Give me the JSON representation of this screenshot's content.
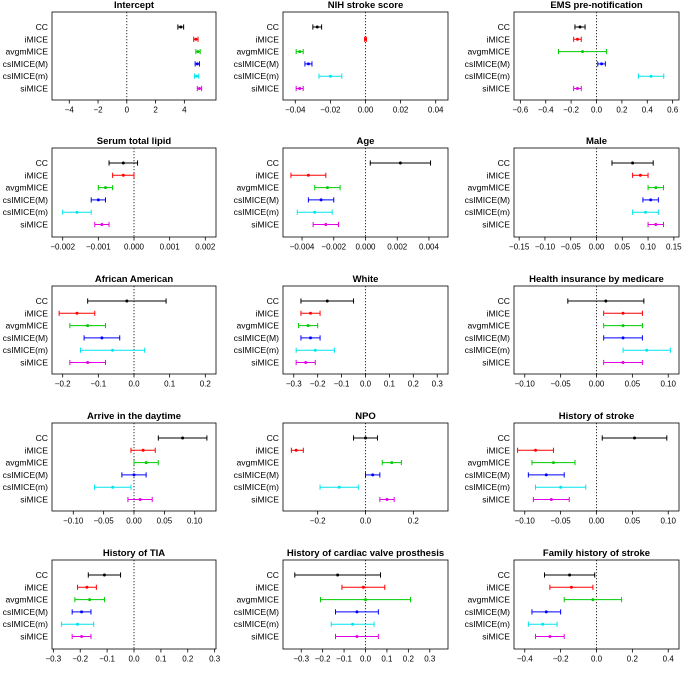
{
  "chart_data": [
    {
      "type": "forest",
      "title": "Intercept",
      "xlim": [
        -5.2,
        6.2
      ],
      "ticks": [
        -4,
        -2,
        0,
        2,
        4
      ],
      "tick_labels": [
        "−4",
        "−2",
        "0",
        "2",
        "4"
      ],
      "methods": [
        "CC",
        "iMICE",
        "avgmMICE",
        "csIMICE(M)",
        "csIMICE(m)",
        "siMICE"
      ],
      "est": [
        3.75,
        4.8,
        4.95,
        4.9,
        4.85,
        5.05
      ],
      "lo": [
        3.55,
        4.65,
        4.8,
        4.75,
        4.7,
        4.9
      ],
      "hi": [
        3.95,
        4.95,
        5.1,
        5.05,
        5.0,
        5.2
      ]
    },
    {
      "type": "forest",
      "title": "NIH stroke score",
      "xlim": [
        -0.047,
        0.047
      ],
      "ticks": [
        -0.04,
        -0.02,
        0,
        0.02,
        0.04
      ],
      "tick_labels": [
        "−0.04",
        "−0.02",
        "0.00",
        "0.02",
        "0.04"
      ],
      "methods": [
        "CC",
        "iMICE",
        "avgmMICE",
        "csIMICE(M)",
        "csIMICE(m)",
        "siMICE"
      ],
      "est": [
        -0.0275,
        0.0,
        -0.0375,
        -0.0325,
        -0.02,
        -0.0375
      ],
      "lo": [
        -0.03,
        -0.0005,
        -0.0395,
        -0.0345,
        -0.0265,
        -0.0395
      ],
      "hi": [
        -0.025,
        0.0005,
        -0.0355,
        -0.0305,
        -0.0135,
        -0.0355
      ]
    },
    {
      "type": "forest",
      "title": "EMS pre-notification",
      "xlim": [
        -0.65,
        0.65
      ],
      "ticks": [
        -0.6,
        -0.4,
        -0.2,
        0,
        0.2,
        0.4,
        0.6
      ],
      "tick_labels": [
        "−0.6",
        "−0.4",
        "−0.2",
        "0.0",
        "0.2",
        "0.4",
        "0.6"
      ],
      "methods": [
        "CC",
        "iMICE",
        "avgmMICE",
        "csIMICE(M)",
        "csIMICE(m)",
        "siMICE"
      ],
      "est": [
        -0.13,
        -0.15,
        -0.11,
        0.04,
        0.43,
        -0.15
      ],
      "lo": [
        -0.17,
        -0.18,
        -0.3,
        0.01,
        0.33,
        -0.18
      ],
      "hi": [
        -0.09,
        -0.12,
        0.08,
        0.07,
        0.53,
        -0.12
      ]
    },
    {
      "type": "forest",
      "title": "Serum total lipid",
      "xlim": [
        -0.0023,
        0.0023
      ],
      "ticks": [
        -0.002,
        -0.001,
        0,
        0.001,
        0.002
      ],
      "tick_labels": [
        "−0.002",
        "−0.001",
        "0.000",
        "0.001",
        "0.002"
      ],
      "methods": [
        "CC",
        "iMICE",
        "avgmMICE",
        "csIMICE(M)",
        "csIMICE(m)",
        "siMICE"
      ],
      "est": [
        -0.0003,
        -0.0003,
        -0.0008,
        -0.001,
        -0.0016,
        -0.0009
      ],
      "lo": [
        -0.0007,
        -0.0006,
        -0.001,
        -0.0012,
        -0.002,
        -0.0011
      ],
      "hi": [
        0.0001,
        0.0,
        -0.0006,
        -0.0008,
        -0.0012,
        -0.0007
      ]
    },
    {
      "type": "forest",
      "title": "Age",
      "xlim": [
        -0.0052,
        0.0052
      ],
      "ticks": [
        -0.004,
        -0.002,
        0,
        0.002,
        0.004
      ],
      "tick_labels": [
        "−0.004",
        "−0.002",
        "0.000",
        "0.002",
        "0.004"
      ],
      "methods": [
        "CC",
        "iMICE",
        "avgmMICE",
        "csIMICE(M)",
        "csIMICE(m)",
        "siMICE"
      ],
      "est": [
        0.0022,
        -0.0036,
        -0.0024,
        -0.0028,
        -0.0032,
        -0.0025
      ],
      "lo": [
        0.0003,
        -0.0047,
        -0.0032,
        -0.0036,
        -0.0043,
        -0.0033
      ],
      "hi": [
        0.0041,
        -0.0025,
        -0.0016,
        -0.002,
        -0.0021,
        -0.0017
      ]
    },
    {
      "type": "forest",
      "title": "Male",
      "xlim": [
        -0.16,
        0.16
      ],
      "ticks": [
        -0.15,
        -0.1,
        -0.05,
        0,
        0.05,
        0.1,
        0.15
      ],
      "tick_labels": [
        "−0.15",
        "−0.10",
        "−0.05",
        "0.00",
        "0.05",
        "0.10",
        "0.15"
      ],
      "methods": [
        "CC",
        "iMICE",
        "avgmMICE",
        "csIMICE(M)",
        "csIMICE(m)",
        "siMICE"
      ],
      "est": [
        0.07,
        0.085,
        0.115,
        0.105,
        0.095,
        0.115
      ],
      "lo": [
        0.03,
        0.07,
        0.1,
        0.09,
        0.07,
        0.1
      ],
      "hi": [
        0.11,
        0.1,
        0.13,
        0.12,
        0.12,
        0.13
      ]
    },
    {
      "type": "forest",
      "title": "African American",
      "xlim": [
        -0.23,
        0.23
      ],
      "ticks": [
        -0.2,
        -0.1,
        0,
        0.1,
        0.2
      ],
      "tick_labels": [
        "−0.2",
        "−0.1",
        "0.0",
        "0.1",
        "0.2"
      ],
      "methods": [
        "CC",
        "iMICE",
        "avgmMICE",
        "csIMICE(M)",
        "csIMICE(m)",
        "siMICE"
      ],
      "est": [
        -0.02,
        -0.16,
        -0.13,
        -0.09,
        -0.06,
        -0.13
      ],
      "lo": [
        -0.13,
        -0.21,
        -0.18,
        -0.14,
        -0.15,
        -0.18
      ],
      "hi": [
        0.09,
        -0.11,
        -0.08,
        -0.04,
        0.03,
        -0.08
      ]
    },
    {
      "type": "forest",
      "title": "White",
      "xlim": [
        -0.345,
        0.345
      ],
      "ticks": [
        -0.3,
        -0.2,
        -0.1,
        0,
        0.1,
        0.2,
        0.3
      ],
      "tick_labels": [
        "−0.3",
        "−0.2",
        "−0.1",
        "0.0",
        "0.1",
        "0.2",
        "0.3"
      ],
      "methods": [
        "CC",
        "iMICE",
        "avgmMICE",
        "csIMICE(M)",
        "csIMICE(m)",
        "siMICE"
      ],
      "est": [
        -0.16,
        -0.23,
        -0.24,
        -0.23,
        -0.21,
        -0.25
      ],
      "lo": [
        -0.27,
        -0.27,
        -0.28,
        -0.27,
        -0.29,
        -0.29
      ],
      "hi": [
        -0.05,
        -0.19,
        -0.2,
        -0.19,
        -0.13,
        -0.21
      ]
    },
    {
      "type": "forest",
      "title": "Health insurance by medicare",
      "xlim": [
        -0.115,
        0.115
      ],
      "ticks": [
        -0.1,
        -0.05,
        0,
        0.05,
        0.1
      ],
      "tick_labels": [
        "−0.10",
        "−0.05",
        "0.00",
        "0.05",
        "0.10"
      ],
      "methods": [
        "CC",
        "iMICE",
        "avgmMICE",
        "csIMICE(M)",
        "csIMICE(m)",
        "siMICE"
      ],
      "est": [
        0.013,
        0.037,
        0.037,
        0.037,
        0.07,
        0.037
      ],
      "lo": [
        -0.04,
        0.01,
        0.01,
        0.01,
        0.037,
        0.01
      ],
      "hi": [
        0.066,
        0.064,
        0.064,
        0.064,
        0.103,
        0.064
      ]
    },
    {
      "type": "forest",
      "title": "Arrive in the daytime",
      "xlim": [
        -0.135,
        0.135
      ],
      "ticks": [
        -0.1,
        -0.05,
        0,
        0.05,
        0.1
      ],
      "tick_labels": [
        "−0.10",
        "−0.05",
        "0.00",
        "0.05",
        "0.10"
      ],
      "methods": [
        "CC",
        "iMICE",
        "avgmMICE",
        "csIMICE(M)",
        "csIMICE(m)",
        "siMICE"
      ],
      "est": [
        0.08,
        0.015,
        0.02,
        0.0,
        -0.035,
        0.01
      ],
      "lo": [
        0.04,
        -0.005,
        0.0,
        -0.02,
        -0.065,
        -0.01
      ],
      "hi": [
        0.12,
        0.035,
        0.04,
        0.02,
        -0.005,
        0.03
      ]
    },
    {
      "type": "forest",
      "title": "NPO",
      "xlim": [
        -0.345,
        0.345
      ],
      "ticks": [
        -0.2,
        0,
        0.2
      ],
      "tick_labels": [
        "−0.2",
        "0.0",
        "0.2"
      ],
      "methods": [
        "CC",
        "iMICE",
        "avgmMICE",
        "csIMICE(M)",
        "csIMICE(m)",
        "siMICE"
      ],
      "est": [
        0.0,
        -0.29,
        0.11,
        0.03,
        -0.11,
        0.09
      ],
      "lo": [
        -0.05,
        -0.31,
        0.07,
        0.0,
        -0.19,
        0.06
      ],
      "hi": [
        0.05,
        -0.26,
        0.15,
        0.06,
        -0.03,
        0.12
      ]
    },
    {
      "type": "forest",
      "title": "History of stroke",
      "xlim": [
        -0.115,
        0.115
      ],
      "ticks": [
        -0.1,
        -0.05,
        0,
        0.05,
        0.1
      ],
      "tick_labels": [
        "−0.10",
        "−0.05",
        "0.00",
        "0.05",
        "0.10"
      ],
      "methods": [
        "CC",
        "iMICE",
        "avgmMICE",
        "csIMICE(M)",
        "csIMICE(m)",
        "siMICE"
      ],
      "est": [
        0.053,
        -0.085,
        -0.06,
        -0.07,
        -0.05,
        -0.063
      ],
      "lo": [
        0.008,
        -0.11,
        -0.09,
        -0.095,
        -0.085,
        -0.088
      ],
      "hi": [
        0.098,
        -0.06,
        -0.03,
        -0.045,
        -0.015,
        -0.038
      ]
    },
    {
      "type": "forest",
      "title": "History of TIA",
      "xlim": [
        -0.305,
        0.305
      ],
      "ticks": [
        -0.3,
        -0.2,
        -0.1,
        0,
        0.1,
        0.2,
        0.3
      ],
      "tick_labels": [
        "−0.3",
        "−0.2",
        "−0.1",
        "0.0",
        "0.1",
        "0.2",
        "0.3"
      ],
      "methods": [
        "CC",
        "iMICE",
        "avgmMICE",
        "csIMICE(M)",
        "csIMICE(m)",
        "siMICE"
      ],
      "est": [
        -0.11,
        -0.175,
        -0.165,
        -0.195,
        -0.21,
        -0.195
      ],
      "lo": [
        -0.17,
        -0.21,
        -0.22,
        -0.23,
        -0.27,
        -0.23
      ],
      "hi": [
        -0.05,
        -0.14,
        -0.11,
        -0.16,
        -0.15,
        -0.16
      ]
    },
    {
      "type": "forest",
      "title": "History of cardiac valve prosthesis",
      "xlim": [
        -0.385,
        0.385
      ],
      "ticks": [
        -0.3,
        -0.2,
        -0.1,
        0,
        0.1,
        0.2,
        0.3
      ],
      "tick_labels": [
        "−0.3",
        "−0.2",
        "−0.1",
        "0.0",
        "0.1",
        "0.2",
        "0.3"
      ],
      "methods": [
        "CC",
        "iMICE",
        "avgmMICE",
        "csIMICE(M)",
        "csIMICE(m)",
        "siMICE"
      ],
      "est": [
        -0.13,
        -0.01,
        0.0,
        -0.04,
        -0.06,
        -0.04
      ],
      "lo": [
        -0.33,
        -0.11,
        -0.21,
        -0.14,
        -0.16,
        -0.14
      ],
      "hi": [
        0.07,
        0.09,
        0.21,
        0.06,
        0.04,
        0.06
      ]
    },
    {
      "type": "forest",
      "title": "Family history of stroke",
      "xlim": [
        -0.46,
        0.46
      ],
      "ticks": [
        -0.4,
        -0.2,
        0,
        0.2,
        0.4
      ],
      "tick_labels": [
        "−0.4",
        "−0.2",
        "0.0",
        "0.2",
        "0.4"
      ],
      "methods": [
        "CC",
        "iMICE",
        "avgmMICE",
        "csIMICE(M)",
        "csIMICE(m)",
        "siMICE"
      ],
      "est": [
        -0.15,
        -0.14,
        -0.02,
        -0.28,
        -0.3,
        -0.26
      ],
      "lo": [
        -0.29,
        -0.26,
        -0.18,
        -0.36,
        -0.38,
        -0.34
      ],
      "hi": [
        -0.01,
        -0.02,
        0.14,
        -0.2,
        -0.22,
        -0.18
      ]
    }
  ],
  "series_colors": {
    "CC": "#000000",
    "iMICE": "#ff0000",
    "avgmMICE": "#00cc00",
    "csIMICE(M)": "#0000ff",
    "csIMICE(m)": "#00e5ee",
    "siMICE": "#e600e6"
  }
}
